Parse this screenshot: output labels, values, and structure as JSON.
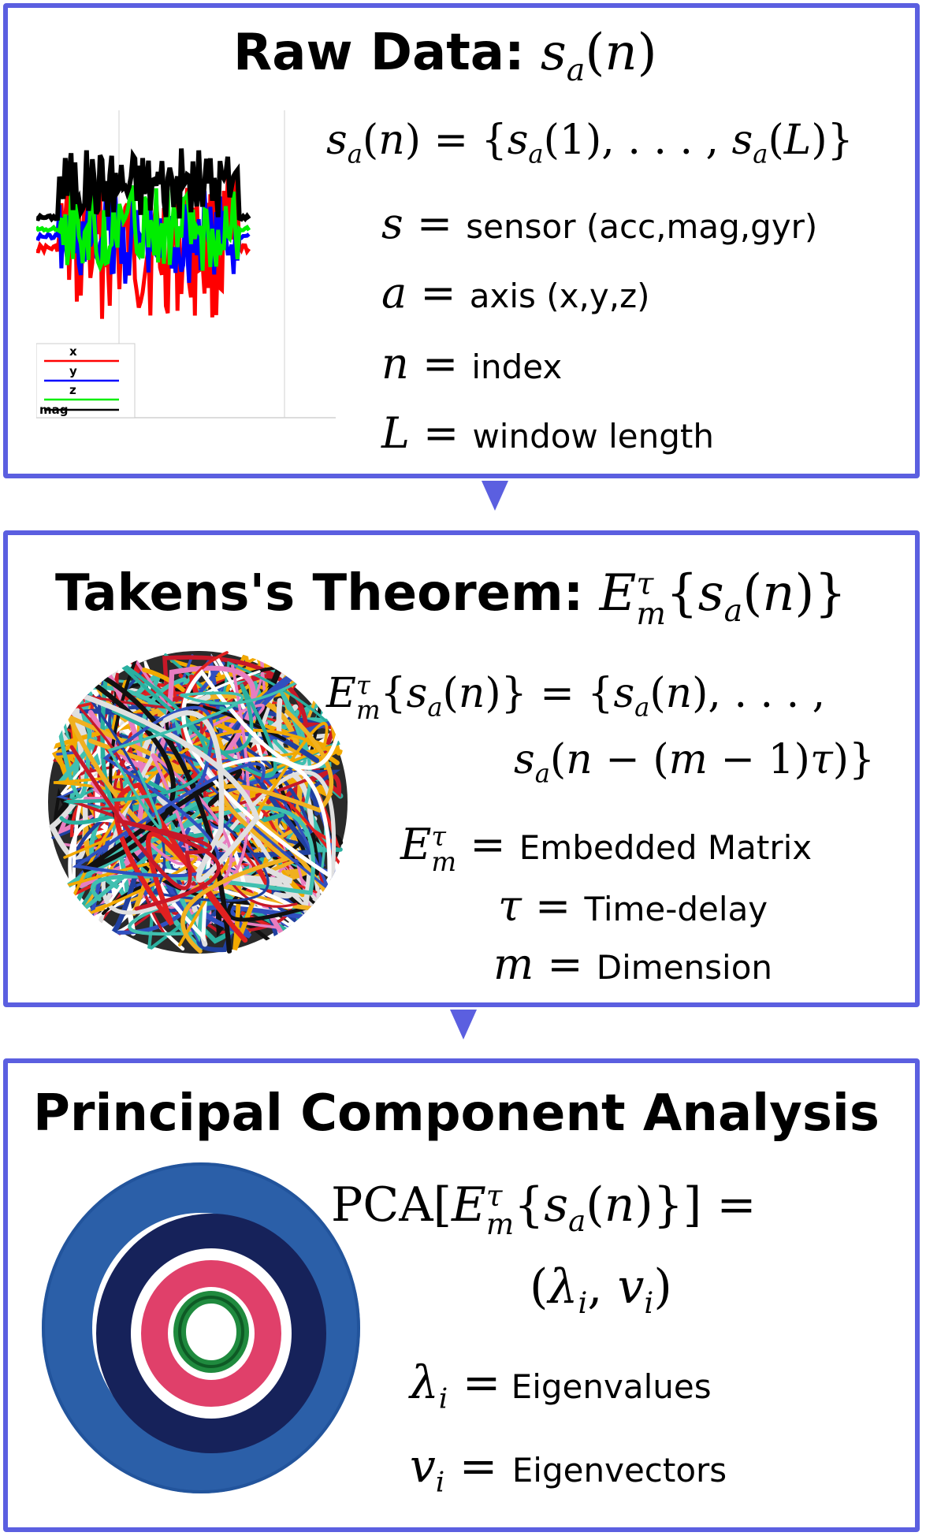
{
  "panel1": {
    "title_text": "Raw Data:",
    "title_math": "s_a(n)",
    "definition_left": "s_a(n)",
    "definition_right": "{s_a(1), . . . , s_a(L)}",
    "legend": [
      {
        "symbol": "s",
        "label": "sensor (acc,mag,gyr)"
      },
      {
        "symbol": "a",
        "label": "axis (x,y,z)"
      },
      {
        "symbol": "n",
        "label": "index"
      },
      {
        "symbol": "L",
        "label": "window length"
      }
    ],
    "plot_legend": [
      "x",
      "y",
      "z",
      "mag"
    ],
    "series_colors": {
      "x": "#ff0000",
      "y": "#0000ff",
      "z": "#00ee00",
      "mag": "#000000"
    }
  },
  "panel2": {
    "title_text": "Takens's Theorem:",
    "title_math": "E_m^τ{s_a(n)}",
    "definition_line1": "E_m^τ{s_a(n)} = {s_a(n), . . . ,",
    "definition_line2": "s_a(n − (m − 1)τ)}",
    "legend": [
      {
        "symbol": "E_m^τ",
        "label": "Embedded Matrix"
      },
      {
        "symbol": "τ",
        "label": "Time-delay"
      },
      {
        "symbol": "m",
        "label": "Dimension"
      }
    ]
  },
  "panel3": {
    "title_text": "Principal Component Analysis",
    "definition_line1": "PCA[E_m^τ{s_a(n)}] =",
    "definition_line2": "(λ_i, v_i)",
    "legend": [
      {
        "symbol": "λ_i",
        "label": "Eigenvalues"
      },
      {
        "symbol": "v_i",
        "label": "Eigenvectors"
      }
    ]
  },
  "colors": {
    "frame": "#5b5fe0"
  }
}
